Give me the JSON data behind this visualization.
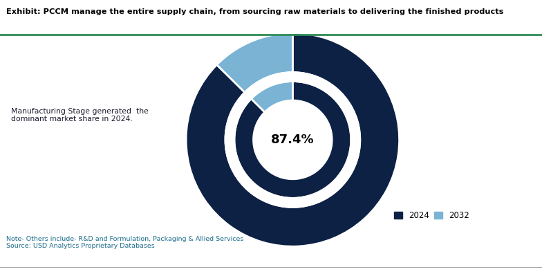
{
  "title": "Exhibit: PCCM manage the entire supply chain, from sourcing raw materials to delivering the finished products",
  "annotation_text": "Manufacturing Stage generated  the\ndominant market share in 2024.",
  "center_text": "87.4%",
  "outer_values": [
    87.4,
    12.6
  ],
  "inner_values": [
    87.4,
    12.6
  ],
  "colors_outer": [
    "#0d2145",
    "#7ab3d4"
  ],
  "colors_inner": [
    "#0d2145",
    "#7ab3d4"
  ],
  "legend_labels": [
    "2024",
    "2032"
  ],
  "legend_colors": [
    "#0d2145",
    "#7ab3d4"
  ],
  "note_text": "Note- Others include- R&D and Formulation, Packaging & Allied Services\nSource: USD Analytics Proprietary Databases",
  "background_color": "#ffffff",
  "title_color": "#000000",
  "top_bar_color": "#2e8b57",
  "annotation_color": "#1a1a2e",
  "note_color": "#1a6b8a"
}
